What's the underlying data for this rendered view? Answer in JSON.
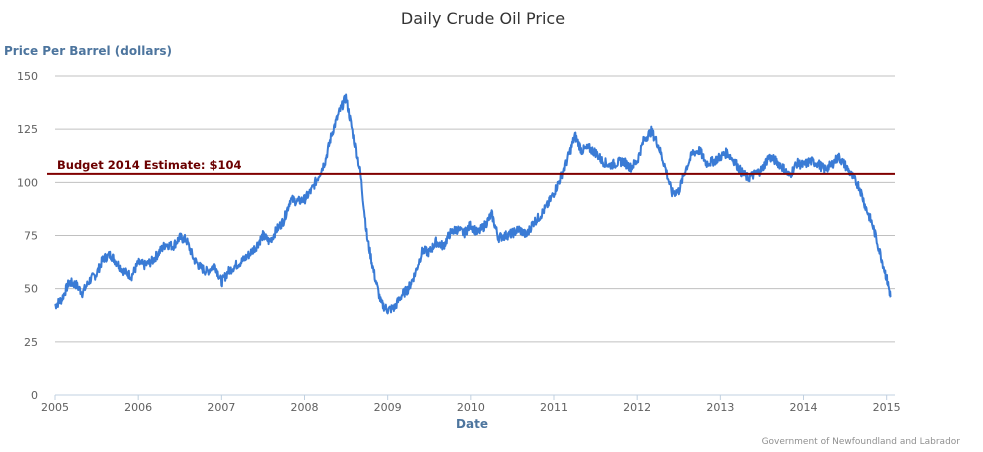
{
  "chart_data": {
    "type": "line",
    "title": "Daily Crude Oil Price",
    "ylabel": "Price Per Barrel (dollars)",
    "xlabel": "Date",
    "credit": "Government of Newfoundland and Labrador",
    "xlim": [
      2005,
      2015.1
    ],
    "ylim": [
      0,
      150
    ],
    "x_ticks": [
      "2005",
      "2006",
      "2007",
      "2008",
      "2009",
      "2010",
      "2011",
      "2012",
      "2013",
      "2014",
      "2015"
    ],
    "x_tick_values": [
      2005,
      2006,
      2007,
      2008,
      2009,
      2010,
      2011,
      2012,
      2013,
      2014,
      2015
    ],
    "y_ticks": [
      "0",
      "25",
      "50",
      "75",
      "100",
      "125",
      "150"
    ],
    "y_tick_values": [
      0,
      25,
      50,
      75,
      100,
      125,
      150
    ],
    "reference_line": {
      "value": 104,
      "label": "Budget 2014 Estimate: $104",
      "color": "#800000"
    },
    "series": [
      {
        "name": "Daily Crude Oil Price",
        "color": "#3a7bd5",
        "x": [
          2005.0,
          2005.08,
          2005.17,
          2005.25,
          2005.33,
          2005.42,
          2005.5,
          2005.58,
          2005.67,
          2005.75,
          2005.83,
          2005.92,
          2006.0,
          2006.08,
          2006.17,
          2006.25,
          2006.33,
          2006.42,
          2006.5,
          2006.58,
          2006.67,
          2006.75,
          2006.83,
          2006.92,
          2007.0,
          2007.08,
          2007.17,
          2007.25,
          2007.33,
          2007.42,
          2007.5,
          2007.58,
          2007.67,
          2007.75,
          2007.83,
          2007.92,
          2008.0,
          2008.08,
          2008.17,
          2008.25,
          2008.33,
          2008.42,
          2008.5,
          2008.58,
          2008.67,
          2008.75,
          2008.83,
          2008.92,
          2009.0,
          2009.08,
          2009.17,
          2009.25,
          2009.33,
          2009.42,
          2009.5,
          2009.58,
          2009.67,
          2009.75,
          2009.83,
          2009.92,
          2010.0,
          2010.08,
          2010.17,
          2010.25,
          2010.33,
          2010.42,
          2010.5,
          2010.58,
          2010.67,
          2010.75,
          2010.83,
          2010.92,
          2011.0,
          2011.08,
          2011.17,
          2011.25,
          2011.33,
          2011.42,
          2011.5,
          2011.58,
          2011.67,
          2011.75,
          2011.83,
          2011.92,
          2012.0,
          2012.08,
          2012.17,
          2012.25,
          2012.33,
          2012.42,
          2012.5,
          2012.58,
          2012.67,
          2012.75,
          2012.83,
          2012.92,
          2013.0,
          2013.08,
          2013.17,
          2013.25,
          2013.33,
          2013.42,
          2013.5,
          2013.58,
          2013.67,
          2013.75,
          2013.83,
          2013.92,
          2014.0,
          2014.08,
          2014.17,
          2014.25,
          2014.33,
          2014.42,
          2014.5,
          2014.58,
          2014.67,
          2014.75,
          2014.83,
          2014.92,
          2015.0,
          2015.05
        ],
        "values": [
          42,
          45,
          53,
          52,
          48,
          54,
          57,
          64,
          66,
          62,
          58,
          56,
          62,
          61,
          63,
          67,
          71,
          70,
          74,
          73,
          64,
          60,
          58,
          61,
          53,
          58,
          61,
          63,
          66,
          70,
          75,
          72,
          78,
          82,
          92,
          91,
          92,
          96,
          103,
          110,
          123,
          133,
          140,
          124,
          104,
          74,
          58,
          43,
          40,
          41,
          47,
          50,
          57,
          68,
          67,
          72,
          70,
          76,
          78,
          76,
          80,
          76,
          80,
          85,
          74,
          75,
          76,
          78,
          75,
          81,
          84,
          89,
          95,
          102,
          112,
          122,
          115,
          116,
          114,
          110,
          108,
          109,
          110,
          107,
          110,
          120,
          124,
          118,
          108,
          95,
          96,
          106,
          114,
          115,
          109,
          110,
          112,
          114,
          110,
          105,
          102,
          104,
          106,
          112,
          110,
          107,
          103,
          109,
          108,
          110,
          109,
          106,
          108,
          112,
          108,
          103,
          98,
          88,
          80,
          67,
          55,
          46
        ]
      }
    ]
  }
}
